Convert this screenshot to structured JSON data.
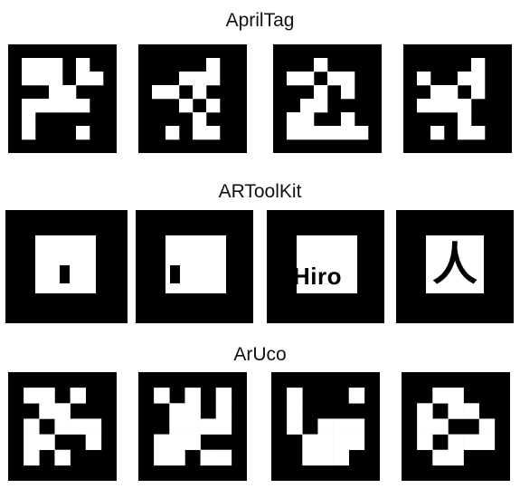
{
  "colors": {
    "black": "#000000",
    "white": "#ffffff"
  },
  "sections": {
    "apriltag": {
      "title": "AprilTag"
    },
    "artoolkit": {
      "title": "ARToolKit",
      "hiro_text": "Hiro",
      "kanji_text": "人"
    },
    "aruco": {
      "title": "ArUco"
    }
  },
  "apriltag_grids": [
    [
      "00000000",
      "01110100",
      "01110110",
      "00011000",
      "01111100",
      "01000000",
      "01000100",
      "00000000"
    ],
    [
      "00000000",
      "00000100",
      "00011100",
      "01101000",
      "00010100",
      "00001000",
      "00101100",
      "00000000"
    ],
    [
      "00000000",
      "00010000",
      "01101100",
      "00010100",
      "00110000",
      "01100100",
      "01111110",
      "00000000"
    ],
    [
      "00000000",
      "00000100",
      "01001100",
      "00110100",
      "01111000",
      "00001000",
      "00101100",
      "00000000"
    ]
  ],
  "aruco_grids": [
    [
      "0000000",
      "0110100",
      "0011000",
      "0101110",
      "0110010",
      "0101000",
      "0000000"
    ],
    [
      "0000000",
      "0101010",
      "0011010",
      "0011110",
      "0111000",
      "0110110",
      "0000000"
    ],
    [
      "0000000",
      "0100010",
      "0100000",
      "0101110",
      "0011110",
      "0011100",
      "0000000"
    ],
    [
      "0000000",
      "0011000",
      "0101100",
      "0110010",
      "0101110",
      "0011000",
      "0000000"
    ]
  ]
}
